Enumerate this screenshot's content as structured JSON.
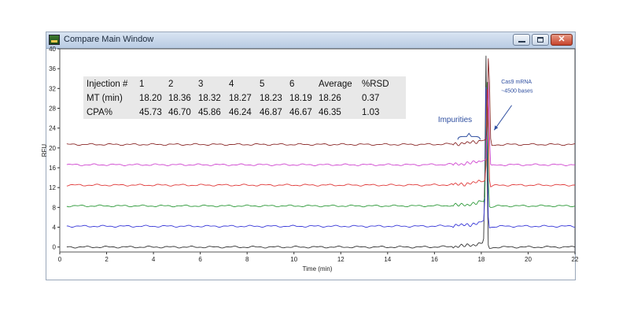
{
  "window": {
    "title": "Compare Main Window",
    "buttons": {
      "minimize": "",
      "maximize": "",
      "close": "✕"
    }
  },
  "chart_data": {
    "type": "line",
    "xlabel": "Time (min)",
    "ylabel": "RFU",
    "xlim": [
      0,
      22
    ],
    "ylim": [
      -1,
      40
    ],
    "x_ticks": [
      0,
      2,
      4,
      6,
      8,
      10,
      12,
      14,
      16,
      18,
      20,
      22
    ],
    "y_ticks": [
      0,
      4,
      8,
      12,
      16,
      20,
      24,
      28,
      32,
      36,
      40
    ],
    "grid": false,
    "legend": "none",
    "series": [
      {
        "color": "#333333",
        "baseline": 0.0,
        "peak_time": 18.2,
        "peak_height": 39.0
      },
      {
        "color": "#3a3ad8",
        "baseline": 4.2,
        "peak_time": 18.22,
        "peak_height": 36.0
      },
      {
        "color": "#2e9a3a",
        "baseline": 8.3,
        "peak_time": 18.24,
        "peak_height": 35.0
      },
      {
        "color": "#e03a3a",
        "baseline": 12.5,
        "peak_time": 18.27,
        "peak_height": 34.0
      },
      {
        "color": "#d048d0",
        "baseline": 16.6,
        "peak_time": 18.3,
        "peak_height": 34.0
      },
      {
        "color": "#8b2a2a",
        "baseline": 20.7,
        "peak_time": 18.32,
        "peak_height": 39.5
      }
    ],
    "annotations": {
      "impurities": "Impurities",
      "cas9_line1": "Cas9 mRNA",
      "cas9_line2": "~4500 bases"
    },
    "table": {
      "header": [
        "Injection #",
        "1",
        "2",
        "3",
        "4",
        "5",
        "6",
        "Average",
        "%RSD"
      ],
      "rows": [
        [
          "MT (min)",
          "18.20",
          "18.36",
          "18.32",
          "18.27",
          "18.23",
          "18.19",
          "18.26",
          "0.37"
        ],
        [
          "CPA%",
          "45.73",
          "46.70",
          "45.86",
          "46.24",
          "46.87",
          "46.67",
          "46.35",
          "1.03"
        ]
      ],
      "background": "#e8e8e8"
    }
  }
}
